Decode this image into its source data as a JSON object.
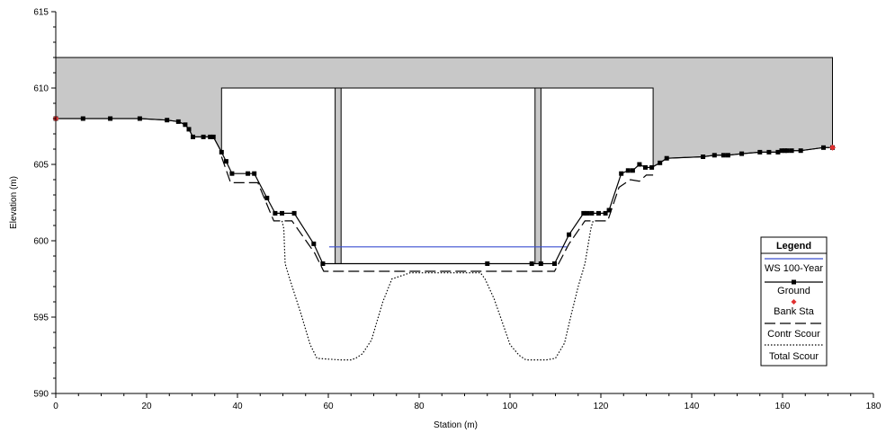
{
  "chart_data": {
    "type": "line",
    "xlabel": "Station (m)",
    "ylabel": "Elevation (m)",
    "xlim": [
      0,
      180
    ],
    "ylim": [
      590,
      615
    ],
    "x_ticks": [
      0,
      20,
      40,
      60,
      80,
      100,
      120,
      140,
      160,
      180
    ],
    "y_ticks": [
      590,
      595,
      600,
      605,
      610,
      615
    ],
    "legend": {
      "title": "Legend",
      "position": "lower-right",
      "entries": [
        "WS 100-Year",
        "Ground",
        "Bank Sta",
        "Contr Scour",
        "Total Scour"
      ]
    },
    "colors": {
      "ws": "#3a4fd0",
      "ground": "#000000",
      "bank": "#e03030",
      "deck_fill": "#c8c8c8",
      "pier_fill": "#c8c8c8"
    },
    "bridge": {
      "deck_top": 612,
      "deck_x": [
        0,
        171
      ],
      "low_chord": 610,
      "opening_x": [
        36.5,
        131.5
      ],
      "piers": [
        {
          "x1": 61.5,
          "x2": 62.8
        },
        {
          "x1": 105.5,
          "x2": 106.8
        }
      ]
    },
    "series": [
      {
        "name": "WS 100-Year",
        "x": [
          60.2,
          112.5
        ],
        "y": [
          599.6,
          599.6
        ]
      },
      {
        "name": "Ground",
        "x": [
          0,
          6,
          12,
          18.5,
          24.5,
          27,
          28.5,
          29.3,
          30.2,
          32.5,
          34,
          34.7,
          36.5,
          37.5,
          38.8,
          42.3,
          43.7,
          46.5,
          48.3,
          49.8,
          52.5,
          56.8,
          58.8,
          95,
          104.8,
          106.8,
          109.8,
          113,
          116.2,
          117,
          118,
          119.5,
          121,
          121.8,
          124.5,
          126,
          127,
          128.5,
          129.8,
          131.2,
          133,
          134.5,
          142.5,
          145,
          147,
          148,
          151,
          155,
          157,
          159,
          159.8,
          160.5,
          161,
          162,
          164,
          169,
          171
        ],
        "y": [
          608,
          608,
          608,
          608,
          607.9,
          607.8,
          607.6,
          607.3,
          606.8,
          606.8,
          606.8,
          606.8,
          605.8,
          605.2,
          604.4,
          604.4,
          604.4,
          602.8,
          601.8,
          601.8,
          601.8,
          599.8,
          598.5,
          598.5,
          598.5,
          598.5,
          598.5,
          600.4,
          601.8,
          601.8,
          601.8,
          601.8,
          601.8,
          602,
          604.4,
          604.6,
          604.6,
          605,
          604.8,
          604.8,
          605.1,
          605.4,
          605.5,
          605.6,
          605.6,
          605.6,
          605.7,
          605.8,
          605.8,
          605.8,
          605.9,
          605.9,
          605.9,
          605.9,
          605.9,
          606.1,
          606.1
        ]
      },
      {
        "name": "Bank Sta",
        "x": [
          0,
          171
        ],
        "y": [
          608,
          606.1
        ]
      },
      {
        "name": "Contr Scour",
        "x": [
          36.5,
          38.5,
          42.5,
          44.5,
          48,
          52,
          57,
          59,
          109.8,
          113,
          116.5,
          121.5,
          124,
          126.5,
          128.5,
          130,
          131.5
        ],
        "y": [
          605.5,
          603.8,
          603.8,
          603.8,
          601.3,
          601.3,
          599.2,
          598,
          598,
          599.8,
          601.3,
          601.3,
          603.5,
          604,
          603.9,
          604.3,
          604.3
        ]
      },
      {
        "name": "Total Scour",
        "x": [
          49.8,
          50.2,
          50.5,
          51.5,
          54,
          56,
          57.5,
          62.5,
          65,
          66,
          67.5,
          69.5,
          70.5,
          72,
          74,
          78,
          85,
          90,
          92,
          93.5,
          94.5,
          96.5,
          98.5,
          100,
          102,
          103.5,
          105,
          106,
          108,
          110,
          112,
          113.5,
          115,
          116.5,
          117.8,
          118.3
        ],
        "y": [
          601.3,
          600.8,
          598.5,
          597.5,
          595.2,
          593.2,
          592.3,
          592.2,
          592.2,
          592.3,
          592.6,
          593.5,
          594.5,
          596,
          597.5,
          597.9,
          597.9,
          597.9,
          597.9,
          597.9,
          597.5,
          596.2,
          594.5,
          593.2,
          592.5,
          592.2,
          592.2,
          592.2,
          592.2,
          592.3,
          593.3,
          595.2,
          597,
          598.5,
          600.8,
          601.3
        ]
      }
    ]
  }
}
